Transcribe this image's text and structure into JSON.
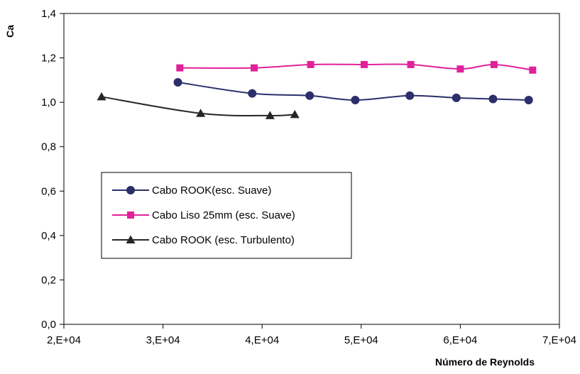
{
  "chart_data": {
    "type": "line",
    "title": "",
    "xlabel": "Número de Reynolds",
    "ylabel": "Ca",
    "xlim": [
      20000,
      70000
    ],
    "ylim": [
      0,
      1.4
    ],
    "x_ticks": [
      20000,
      30000,
      40000,
      50000,
      60000,
      70000
    ],
    "x_tick_labels": [
      "2,E+04",
      "3,E+04",
      "4,E+04",
      "5,E+04",
      "6,E+04",
      "7,E+04"
    ],
    "y_ticks": [
      0,
      0.2,
      0.4,
      0.6,
      0.8,
      1.0,
      1.2,
      1.4
    ],
    "y_tick_labels": [
      "0,0",
      "0,2",
      "0,4",
      "0,6",
      "0,8",
      "1,0",
      "1,2",
      "1,4"
    ],
    "grid": false,
    "legend_position": "center-left",
    "series": [
      {
        "name": "Cabo ROOK(esc. Suave)",
        "color": "#2b2f6b",
        "marker": "circle",
        "x": [
          31500,
          39000,
          44800,
          49400,
          54900,
          59600,
          63300,
          66900
        ],
        "y": [
          1.09,
          1.04,
          1.03,
          1.01,
          1.03,
          1.02,
          1.015,
          1.01
        ]
      },
      {
        "name": "Cabo Liso 25mm (esc. Suave)",
        "color": "#e0219a",
        "marker": "square",
        "x": [
          31700,
          39200,
          44900,
          50300,
          55000,
          60000,
          63400,
          67300
        ],
        "y": [
          1.155,
          1.155,
          1.17,
          1.17,
          1.17,
          1.15,
          1.17,
          1.145
        ]
      },
      {
        "name": "Cabo ROOK (esc. Turbulento)",
        "color": "#262626",
        "marker": "triangle",
        "x": [
          23800,
          33800,
          40800,
          43300
        ],
        "y": [
          1.025,
          0.95,
          0.94,
          0.945
        ]
      }
    ]
  }
}
